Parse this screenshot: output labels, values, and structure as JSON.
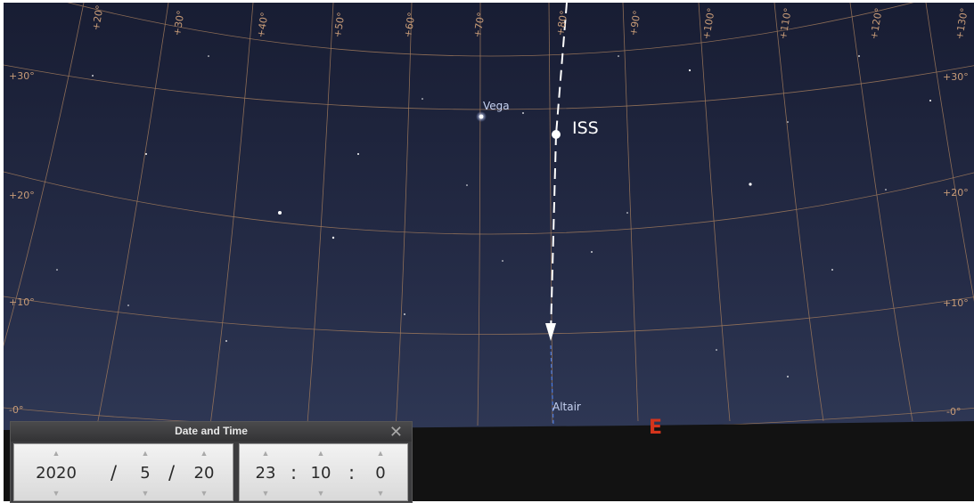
{
  "sky": {
    "background_top": "#181d33",
    "background_bottom": "#2c3552",
    "grid_color": "#a07a5c",
    "top_labels": [
      "+20°",
      "+30°",
      "+40°",
      "+50°",
      "+60°",
      "+70°",
      "+80°",
      "+90°",
      "+100°",
      "+110°",
      "+120°",
      "+130°"
    ],
    "left_labels": [
      "+30°",
      "+20°",
      "+10°",
      "-0°"
    ],
    "right_labels": [
      "+30°",
      "+20°",
      "+10°",
      "-0°"
    ]
  },
  "objects": {
    "vega_label": "Vega",
    "altair_label": "Altair",
    "iss_label": "ISS"
  },
  "cardinal": {
    "east": "E"
  },
  "date_time": {
    "title": "Date and Time",
    "close_icon": "close-icon",
    "year": "2020",
    "month": "5",
    "day": "20",
    "hour": "23",
    "minute": "10",
    "second": "0",
    "date_separator": "/",
    "time_separator": ":",
    "up_arrow": "▲",
    "down_arrow": "▼"
  }
}
